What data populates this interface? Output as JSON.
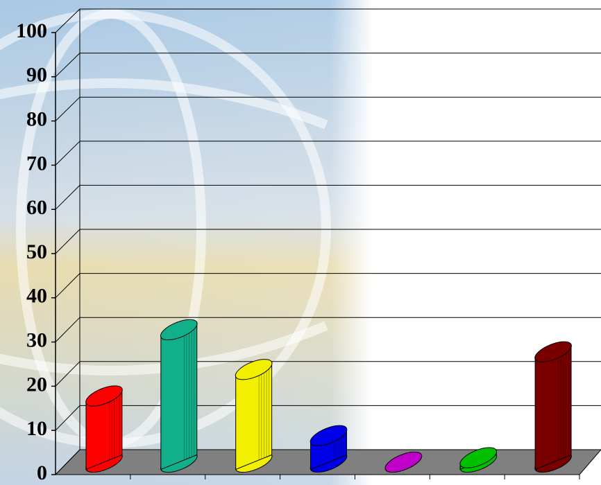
{
  "chart_data": {
    "type": "bar3d",
    "values": [
      15,
      30,
      21,
      6,
      0,
      1,
      25
    ],
    "colors": [
      "#ff0000",
      "#12b08a",
      "#f2f000",
      "#0000e6",
      "#c000c8",
      "#00c000",
      "#7a0000"
    ],
    "ylim": [
      0,
      100
    ],
    "yticks": [
      0,
      10,
      20,
      30,
      40,
      50,
      60,
      70,
      80,
      90,
      100
    ],
    "grid": true
  }
}
